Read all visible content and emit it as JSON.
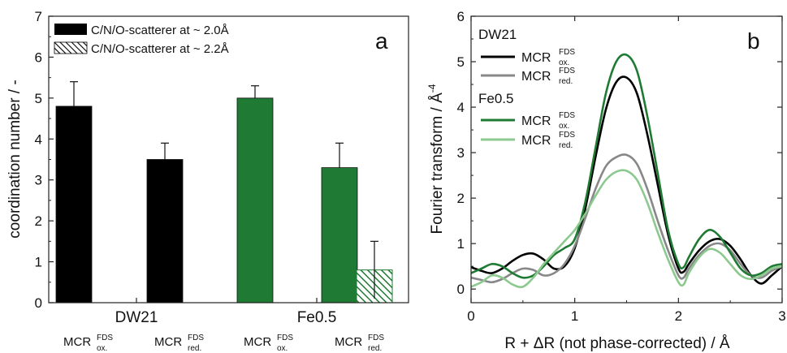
{
  "colors": {
    "dw21_ox": "#000000",
    "dw21_red": "#888888",
    "fe_ox": "#1f7a33",
    "fe_red": "#8cc98f",
    "bar_black": "#000000",
    "bar_green": "#1f7a33"
  },
  "chart_data": [
    {
      "panel": "a",
      "type": "bar",
      "ylabel": "coordination number / -",
      "ylim": [
        0,
        7
      ],
      "yticks": [
        "0",
        "1",
        "2",
        "3",
        "4",
        "5",
        "6",
        "7"
      ],
      "groups": [
        {
          "label": "DW21",
          "sublabels": [
            {
              "base": "MCR",
              "sup": "FDS",
              "sub": "ox."
            },
            {
              "base": "MCR",
              "sup": "FDS",
              "sub": "red."
            }
          ]
        },
        {
          "label": "Fe0.5",
          "sublabels": [
            {
              "base": "MCR",
              "sup": "FDS",
              "sub": "ox."
            },
            {
              "base": "MCR",
              "sup": "FDS",
              "sub": "red."
            }
          ]
        }
      ],
      "legend": [
        {
          "name": "C/N/O-scatterer at ~ 2.0Å",
          "pattern": "solid"
        },
        {
          "name": "C/N/O-scatterer at ~ 2.2Å",
          "pattern": "hatched"
        }
      ],
      "bars": [
        {
          "group": "DW21",
          "sample": "ox.",
          "series": "C/N/O-scatterer at ~ 2.0Å",
          "value": 4.8,
          "error": 0.6,
          "color": "black"
        },
        {
          "group": "DW21",
          "sample": "red.",
          "series": "C/N/O-scatterer at ~ 2.0Å",
          "value": 3.5,
          "error": 0.4,
          "color": "black"
        },
        {
          "group": "Fe0.5",
          "sample": "ox.",
          "series": "C/N/O-scatterer at ~ 2.0Å",
          "value": 5.0,
          "error": 0.3,
          "color": "green"
        },
        {
          "group": "Fe0.5",
          "sample": "red.",
          "series": "C/N/O-scatterer at ~ 2.0Å",
          "value": 3.3,
          "error": 0.6,
          "color": "green"
        },
        {
          "group": "Fe0.5",
          "sample": "red.",
          "series": "C/N/O-scatterer at ~ 2.2Å",
          "value": 0.8,
          "error": 0.7,
          "color": "green"
        }
      ],
      "panel_label": "a"
    },
    {
      "panel": "b",
      "type": "line",
      "xlabel": "R + ΔR (not phase-corrected) / Å",
      "ylabel": "Fourier transform / Å",
      "ylabel_sup": "-4",
      "xlim": [
        0,
        3
      ],
      "ylim": [
        -0.3,
        6
      ],
      "xticks": [
        "0",
        "1",
        "2",
        "3"
      ],
      "yticks": [
        "0",
        "1",
        "2",
        "3",
        "4",
        "5",
        "6"
      ],
      "legend_groups": [
        {
          "title": "DW21",
          "entries": [
            {
              "base": "MCR",
              "sup": "FDS",
              "sub": "ox.",
              "color": "#000000"
            },
            {
              "base": "MCR",
              "sup": "FDS",
              "sub": "red.",
              "color": "#888888"
            }
          ]
        },
        {
          "title": "Fe0.5",
          "entries": [
            {
              "base": "MCR",
              "sup": "FDS",
              "sub": "ox.",
              "color": "#1f7a33"
            },
            {
              "base": "MCR",
              "sup": "FDS",
              "sub": "red.",
              "color": "#8cc98f"
            }
          ]
        }
      ],
      "panel_label": "b",
      "series": [
        {
          "group": "DW21",
          "sample": "ox.",
          "color": "#000000",
          "x": [
            0,
            0.1,
            0.2,
            0.3,
            0.4,
            0.5,
            0.6,
            0.7,
            0.8,
            0.9,
            1.0,
            1.1,
            1.2,
            1.3,
            1.4,
            1.5,
            1.6,
            1.7,
            1.8,
            1.9,
            2.0,
            2.05,
            2.1,
            2.2,
            2.3,
            2.4,
            2.5,
            2.6,
            2.7,
            2.8,
            2.9,
            3.0
          ],
          "y": [
            0.48,
            0.4,
            0.35,
            0.45,
            0.62,
            0.75,
            0.78,
            0.65,
            0.45,
            0.5,
            0.9,
            1.75,
            2.9,
            3.95,
            4.55,
            4.65,
            4.3,
            3.4,
            2.3,
            1.2,
            0.45,
            0.38,
            0.55,
            0.85,
            1.05,
            1.1,
            0.95,
            0.65,
            0.3,
            0.12,
            0.3,
            0.5
          ]
        },
        {
          "group": "DW21",
          "sample": "red.",
          "color": "#888888",
          "x": [
            0,
            0.1,
            0.2,
            0.3,
            0.4,
            0.5,
            0.6,
            0.7,
            0.8,
            0.9,
            1.0,
            1.1,
            1.2,
            1.3,
            1.4,
            1.5,
            1.6,
            1.7,
            1.8,
            1.9,
            2.0,
            2.05,
            2.1,
            2.2,
            2.3,
            2.4,
            2.5,
            2.6,
            2.7,
            2.8,
            2.9,
            3.0
          ],
          "y": [
            0.25,
            0.2,
            0.15,
            0.22,
            0.35,
            0.45,
            0.42,
            0.3,
            0.35,
            0.55,
            0.95,
            1.55,
            2.2,
            2.7,
            2.9,
            2.95,
            2.75,
            2.2,
            1.5,
            0.85,
            0.3,
            0.25,
            0.45,
            0.75,
            0.95,
            1.0,
            0.85,
            0.55,
            0.3,
            0.25,
            0.4,
            0.5
          ]
        },
        {
          "group": "Fe0.5",
          "sample": "ox.",
          "color": "#1f7a33",
          "x": [
            0,
            0.1,
            0.2,
            0.3,
            0.4,
            0.5,
            0.6,
            0.7,
            0.8,
            0.9,
            1.0,
            1.1,
            1.2,
            1.3,
            1.4,
            1.5,
            1.6,
            1.7,
            1.8,
            1.9,
            2.0,
            2.05,
            2.1,
            2.2,
            2.3,
            2.4,
            2.5,
            2.6,
            2.7,
            2.8,
            2.9,
            3.0
          ],
          "y": [
            0.35,
            0.45,
            0.55,
            0.5,
            0.35,
            0.25,
            0.3,
            0.5,
            0.75,
            0.9,
            1.1,
            1.9,
            3.1,
            4.3,
            5.0,
            5.15,
            4.8,
            3.8,
            2.55,
            1.3,
            0.55,
            0.48,
            0.7,
            1.1,
            1.3,
            1.15,
            0.8,
            0.45,
            0.3,
            0.35,
            0.5,
            0.55
          ]
        },
        {
          "group": "Fe0.5",
          "sample": "red.",
          "color": "#8cc98f",
          "x": [
            0,
            0.1,
            0.2,
            0.3,
            0.4,
            0.5,
            0.6,
            0.7,
            0.8,
            0.9,
            1.0,
            1.1,
            1.2,
            1.3,
            1.4,
            1.5,
            1.6,
            1.7,
            1.8,
            1.9,
            2.0,
            2.05,
            2.1,
            2.2,
            2.3,
            2.4,
            2.5,
            2.6,
            2.7,
            2.8,
            2.9,
            3.0
          ],
          "y": [
            0.05,
            0.15,
            0.3,
            0.25,
            0.1,
            0.05,
            0.25,
            0.55,
            0.8,
            1.05,
            1.3,
            1.65,
            2.05,
            2.4,
            2.58,
            2.6,
            2.4,
            1.9,
            1.25,
            0.65,
            0.15,
            0.1,
            0.35,
            0.7,
            0.88,
            0.8,
            0.55,
            0.3,
            0.22,
            0.3,
            0.45,
            0.5
          ]
        }
      ]
    }
  ]
}
